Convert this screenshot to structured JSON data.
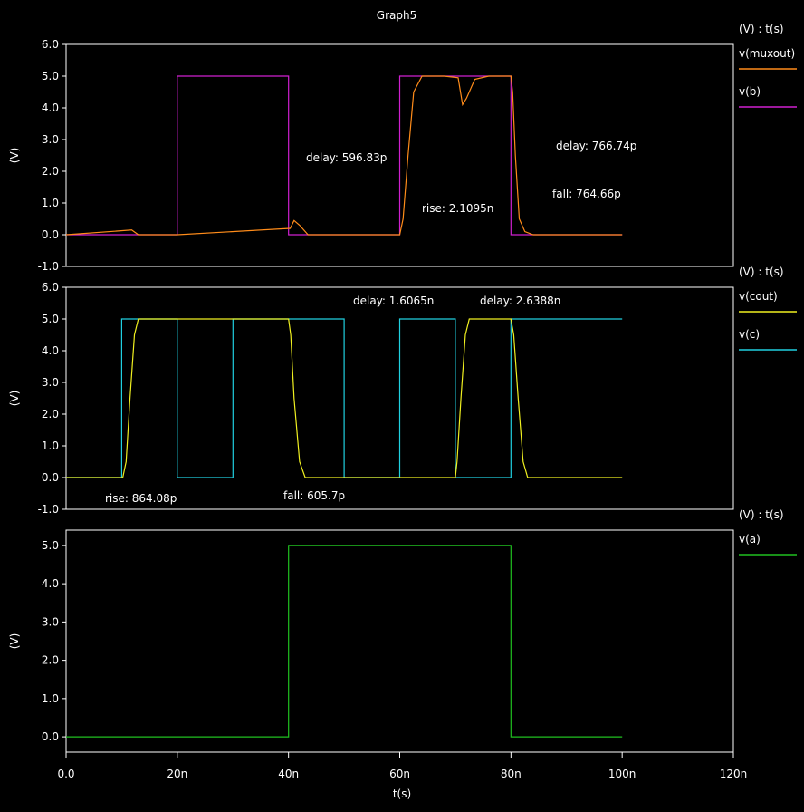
{
  "title": "Graph5",
  "x_axis": {
    "label": "t(s)",
    "ticks": [
      "0.0",
      "20n",
      "40n",
      "60n",
      "80n",
      "100n",
      "120n"
    ]
  },
  "panels": [
    {
      "legend_header": "(V) : t(s)",
      "ylabel": "(V)",
      "yticks": [
        "-1.0",
        "0.0",
        "1.0",
        "2.0",
        "3.0",
        "4.0",
        "5.0",
        "6.0"
      ],
      "legend": [
        {
          "name": "v(muxout)",
          "color": "#ff8c1a"
        },
        {
          "name": "v(b)",
          "color": "#d020d0"
        }
      ],
      "annotations": [
        "delay: 596.83p",
        "rise: 2.1095n",
        "delay: 766.74p",
        "fall: 764.66p"
      ]
    },
    {
      "legend_header": "(V) : t(s)",
      "ylabel": "(V)",
      "yticks": [
        "-1.0",
        "0.0",
        "1.0",
        "2.0",
        "3.0",
        "4.0",
        "5.0",
        "6.0"
      ],
      "legend": [
        {
          "name": "v(cout)",
          "color": "#f0f020"
        },
        {
          "name": "v(c)",
          "color": "#20d0e0"
        }
      ],
      "annotations": [
        "delay: 1.6065n",
        "delay: 2.6388n",
        "rise: 864.08p",
        "fall: 605.7p"
      ]
    },
    {
      "legend_header": "(V) : t(s)",
      "ylabel": "(V)",
      "yticks": [
        "0.0",
        "1.0",
        "2.0",
        "3.0",
        "4.0",
        "5.0"
      ],
      "legend": [
        {
          "name": "v(a)",
          "color": "#20c020"
        }
      ],
      "annotations": []
    }
  ],
  "chart_data": [
    {
      "type": "line",
      "xlim": [
        0,
        120
      ],
      "ylim": [
        -1,
        6
      ],
      "series": [
        {
          "name": "v(b)",
          "x": [
            0,
            20,
            20,
            40,
            40,
            60,
            60,
            80,
            80,
            100
          ],
          "y": [
            0,
            0,
            5,
            5,
            0,
            0,
            5,
            5,
            0,
            0
          ]
        },
        {
          "name": "v(muxout)",
          "x": [
            0,
            11.8,
            12.2,
            13,
            20,
            40.3,
            41,
            42,
            43.5,
            60,
            60.6,
            61.5,
            62.5,
            64,
            68,
            70.5,
            71.3,
            72,
            73.5,
            76,
            80,
            80.3,
            80.8,
            81.5,
            82.5,
            84,
            100
          ],
          "y": [
            0,
            0.15,
            0.1,
            0,
            0,
            0.2,
            0.45,
            0.3,
            0,
            0,
            0.5,
            2.5,
            4.5,
            5,
            5,
            4.95,
            4.1,
            4.3,
            4.9,
            5,
            5,
            4.5,
            2.5,
            0.5,
            0.1,
            0,
            0
          ]
        }
      ]
    },
    {
      "type": "line",
      "xlim": [
        0,
        120
      ],
      "ylim": [
        -1,
        6
      ],
      "series": [
        {
          "name": "v(c)",
          "x": [
            0,
            10,
            10,
            20,
            20,
            30,
            30,
            50,
            50,
            60,
            60,
            70,
            70,
            80,
            80,
            100
          ],
          "y": [
            0,
            0,
            5,
            5,
            0,
            0,
            5,
            5,
            0,
            0,
            5,
            5,
            0,
            0,
            5,
            5
          ]
        },
        {
          "name": "v(cout)",
          "x": [
            0,
            10.2,
            10.8,
            11.5,
            12.3,
            13,
            40,
            40.4,
            41,
            42,
            43,
            70,
            70.3,
            71,
            71.8,
            72.5,
            80,
            80.5,
            81.3,
            82.2,
            83,
            100
          ],
          "y": [
            0,
            0,
            0.5,
            2.5,
            4.5,
            5,
            5,
            4.5,
            2.5,
            0.5,
            0,
            0,
            0.5,
            2.5,
            4.5,
            5,
            5,
            4.5,
            2.5,
            0.5,
            0,
            0
          ]
        }
      ]
    },
    {
      "type": "line",
      "xlim": [
        0,
        120
      ],
      "ylim": [
        -0.4,
        5.4
      ],
      "series": [
        {
          "name": "v(a)",
          "x": [
            0,
            40,
            40,
            80,
            80,
            100
          ],
          "y": [
            0,
            0,
            5,
            5,
            0,
            0
          ]
        }
      ]
    }
  ]
}
